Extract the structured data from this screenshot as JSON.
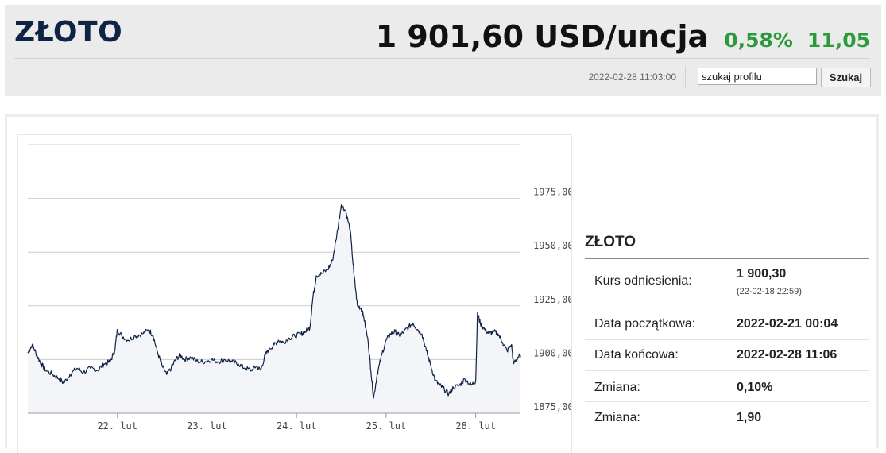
{
  "header": {
    "title": "ZŁOTO",
    "price": "1 901,60 USD/uncja",
    "change_pct": "0,58%",
    "change_abs": "11,05",
    "timestamp": "2022-02-28 11:03:00",
    "search_value": "szukaj profilu",
    "search_button": "Szukaj",
    "colors": {
      "positive": "#2a9a3a",
      "title": "#0f2345"
    }
  },
  "info": {
    "title": "ZŁOTO",
    "rows": [
      {
        "label": "Kurs odniesienia:",
        "value": "1 900,30",
        "sub": "(22-02-18 22:59)"
      },
      {
        "label": "Data początkowa:",
        "value": "2022-02-21 00:04"
      },
      {
        "label": "Data końcowa:",
        "value": "2022-02-28 11:06"
      },
      {
        "label": "Zmiana:",
        "value": "0,10%"
      },
      {
        "label": "Zmiana:",
        "value": "1,90"
      }
    ]
  },
  "chart_data": {
    "type": "area",
    "ylim": [
      1875,
      2000
    ],
    "y_ticks": [
      1875,
      1900,
      1925,
      1950,
      1975
    ],
    "y_tick_labels": [
      "1875,00",
      "1900,00",
      "1925,00",
      "1950,00",
      "1975,00"
    ],
    "x_tick_labels": [
      "22. lut",
      "23. lut",
      "24. lut",
      "25. lut",
      "28. lut"
    ],
    "x_tick_positions": [
      1,
      2,
      3,
      4,
      5
    ],
    "xlim": [
      0,
      5.5
    ],
    "grid": true,
    "colors": {
      "line": "#0f2345",
      "fill": "#f3f5f8",
      "grid": "#cccccc"
    },
    "series": [
      {
        "values": [
          [
            0.0,
            1903
          ],
          [
            0.05,
            1907
          ],
          [
            0.1,
            1902
          ],
          [
            0.15,
            1898
          ],
          [
            0.2,
            1895
          ],
          [
            0.28,
            1893
          ],
          [
            0.35,
            1891
          ],
          [
            0.4,
            1889
          ],
          [
            0.47,
            1893
          ],
          [
            0.55,
            1896
          ],
          [
            0.62,
            1894
          ],
          [
            0.7,
            1896
          ],
          [
            0.78,
            1895
          ],
          [
            0.85,
            1898
          ],
          [
            0.92,
            1899
          ],
          [
            0.97,
            1904
          ],
          [
            1.0,
            1914
          ],
          [
            1.05,
            1911
          ],
          [
            1.12,
            1909
          ],
          [
            1.2,
            1911
          ],
          [
            1.28,
            1912
          ],
          [
            1.35,
            1914
          ],
          [
            1.4,
            1911
          ],
          [
            1.45,
            1903
          ],
          [
            1.5,
            1897
          ],
          [
            1.55,
            1893
          ],
          [
            1.6,
            1896
          ],
          [
            1.65,
            1900
          ],
          [
            1.7,
            1902
          ],
          [
            1.75,
            1900
          ],
          [
            1.82,
            1901
          ],
          [
            1.9,
            1899
          ],
          [
            1.98,
            1899
          ],
          [
            2.05,
            1900
          ],
          [
            2.12,
            1899
          ],
          [
            2.2,
            1900
          ],
          [
            2.28,
            1899
          ],
          [
            2.35,
            1898
          ],
          [
            2.42,
            1896
          ],
          [
            2.5,
            1895
          ],
          [
            2.55,
            1897
          ],
          [
            2.6,
            1895
          ],
          [
            2.65,
            1902
          ],
          [
            2.7,
            1905
          ],
          [
            2.75,
            1907
          ],
          [
            2.8,
            1909
          ],
          [
            2.85,
            1908
          ],
          [
            2.92,
            1910
          ],
          [
            2.98,
            1911
          ],
          [
            3.05,
            1912
          ],
          [
            3.1,
            1913
          ],
          [
            3.15,
            1915
          ],
          [
            3.18,
            1928
          ],
          [
            3.22,
            1939
          ],
          [
            3.28,
            1940
          ],
          [
            3.35,
            1942
          ],
          [
            3.4,
            1946
          ],
          [
            3.45,
            1958
          ],
          [
            3.5,
            1972
          ],
          [
            3.55,
            1969
          ],
          [
            3.6,
            1960
          ],
          [
            3.64,
            1940
          ],
          [
            3.68,
            1925
          ],
          [
            3.72,
            1924
          ],
          [
            3.75,
            1920
          ],
          [
            3.8,
            1908
          ],
          [
            3.83,
            1895
          ],
          [
            3.86,
            1882
          ],
          [
            3.9,
            1893
          ],
          [
            3.95,
            1902
          ],
          [
            4.0,
            1909
          ],
          [
            4.05,
            1912
          ],
          [
            4.1,
            1913
          ],
          [
            4.15,
            1911
          ],
          [
            4.2,
            1913
          ],
          [
            4.25,
            1915
          ],
          [
            4.3,
            1917
          ],
          [
            4.35,
            1914
          ],
          [
            4.4,
            1912
          ],
          [
            4.45,
            1904
          ],
          [
            4.5,
            1897
          ],
          [
            4.55,
            1890
          ],
          [
            4.6,
            1888
          ],
          [
            4.65,
            1886
          ],
          [
            4.7,
            1884
          ],
          [
            4.75,
            1887
          ],
          [
            4.82,
            1888
          ],
          [
            4.88,
            1891
          ],
          [
            4.95,
            1888
          ],
          [
            5.0,
            1890
          ],
          [
            5.02,
            1922
          ],
          [
            5.05,
            1917
          ],
          [
            5.1,
            1914
          ],
          [
            5.15,
            1912
          ],
          [
            5.2,
            1913
          ],
          [
            5.25,
            1912
          ],
          [
            5.3,
            1908
          ],
          [
            5.35,
            1904
          ],
          [
            5.4,
            1907
          ],
          [
            5.42,
            1898
          ],
          [
            5.47,
            1901
          ],
          [
            5.5,
            1902
          ]
        ]
      }
    ]
  }
}
